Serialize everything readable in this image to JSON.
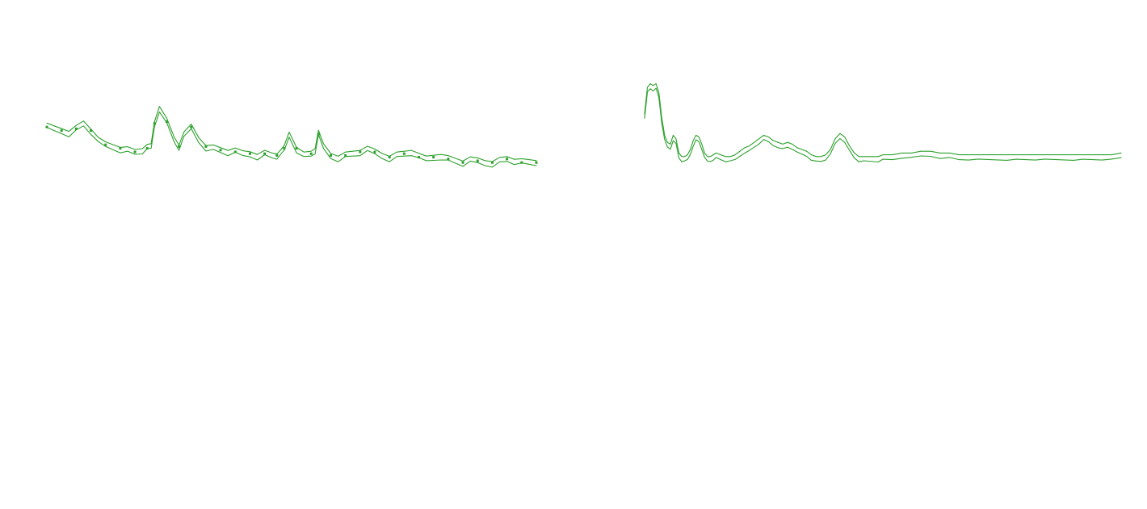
{
  "theme": {
    "background": "#ffffff",
    "line_color": "#2ca02c"
  },
  "chart_data": [
    {
      "type": "line",
      "title": "",
      "xlabel": "",
      "ylabel": "",
      "grid": false,
      "legend": "none",
      "xlim": [
        0,
        100
      ],
      "ylim": [
        0,
        100
      ],
      "series": [
        {
          "x": [
            0,
            1.5,
            3,
            4.5,
            6,
            7.5,
            9,
            10.5,
            12,
            13.5,
            15,
            16.5,
            18,
            19.5,
            20.5,
            21.3,
            22,
            23,
            24.5,
            26,
            27,
            28,
            29.5,
            31,
            32.5,
            34,
            35.5,
            37,
            38.5,
            40,
            41.5,
            43,
            44.5,
            46,
            47,
            47.8,
            48.5,
            49.5,
            51,
            52.5,
            54,
            54.8,
            55.5,
            56.5,
            58,
            59.5,
            61,
            62.5,
            64,
            65.5,
            67,
            68.5,
            70,
            71.5,
            73,
            74.5,
            76,
            77.5,
            79,
            80.5,
            82,
            83.5,
            85,
            86.5,
            88,
            89.5,
            91,
            92.5,
            94,
            95.5,
            97,
            98.5,
            100
          ],
          "y": [
            74,
            73,
            72,
            71,
            73,
            76,
            72,
            66,
            64,
            63,
            62,
            61,
            60,
            61,
            62,
            63,
            76,
            85,
            77,
            67,
            63,
            69,
            74,
            67,
            63,
            62,
            61,
            60,
            60,
            59,
            59,
            58,
            59,
            58,
            58,
            59,
            62,
            70,
            62,
            58,
            59,
            61,
            70,
            63,
            58,
            57,
            58,
            59,
            60,
            61,
            60,
            58,
            57,
            58,
            59,
            60,
            57,
            56,
            57,
            58,
            56,
            55,
            54,
            55,
            55,
            54,
            54,
            55,
            56,
            55,
            54,
            54,
            54
          ]
        }
      ]
    },
    {
      "type": "line",
      "title": "",
      "xlabel": "",
      "ylabel": "",
      "grid": false,
      "legend": "none",
      "xlim": [
        0,
        100
      ],
      "ylim": [
        0,
        100
      ],
      "series": [
        {
          "x": [
            0,
            0.6,
            1.2,
            1.8,
            2.4,
            3,
            3.6,
            4.2,
            4.8,
            5.4,
            6,
            6.6,
            7.2,
            7.8,
            8.4,
            9,
            9.6,
            10.2,
            10.8,
            11.4,
            12,
            12.6,
            13.2,
            13.8,
            14.4,
            15,
            16,
            17,
            18,
            19,
            20,
            21,
            22,
            23,
            24,
            25,
            26,
            27,
            28,
            29,
            30,
            31,
            32,
            33,
            34,
            35,
            36,
            37,
            38,
            39,
            40,
            41,
            42,
            43,
            44,
            45,
            46,
            47,
            48,
            49,
            50,
            52,
            54,
            56,
            58,
            60,
            62,
            64,
            66,
            68,
            70,
            72,
            74,
            76,
            78,
            80,
            82,
            84,
            86,
            88,
            90,
            92,
            94,
            96,
            98,
            100
          ],
          "y": [
            80,
            95,
            97,
            96,
            97,
            92,
            78,
            68,
            64,
            63,
            68,
            66,
            58,
            56,
            56,
            57,
            60,
            65,
            68,
            67,
            63,
            58,
            56,
            56,
            57,
            58,
            57,
            56,
            56,
            57,
            59,
            61,
            62,
            64,
            66,
            68,
            67,
            65,
            64,
            63,
            64,
            63,
            61,
            60,
            59,
            57,
            56,
            56,
            57,
            60,
            66,
            69,
            67,
            62,
            58,
            56,
            56,
            56,
            56,
            56,
            57,
            57,
            58,
            58,
            59,
            59,
            58,
            58,
            57,
            57,
            57,
            57,
            57,
            57,
            57,
            57,
            57,
            57,
            57,
            57,
            57,
            57,
            57,
            57,
            57,
            58
          ]
        }
      ]
    }
  ]
}
